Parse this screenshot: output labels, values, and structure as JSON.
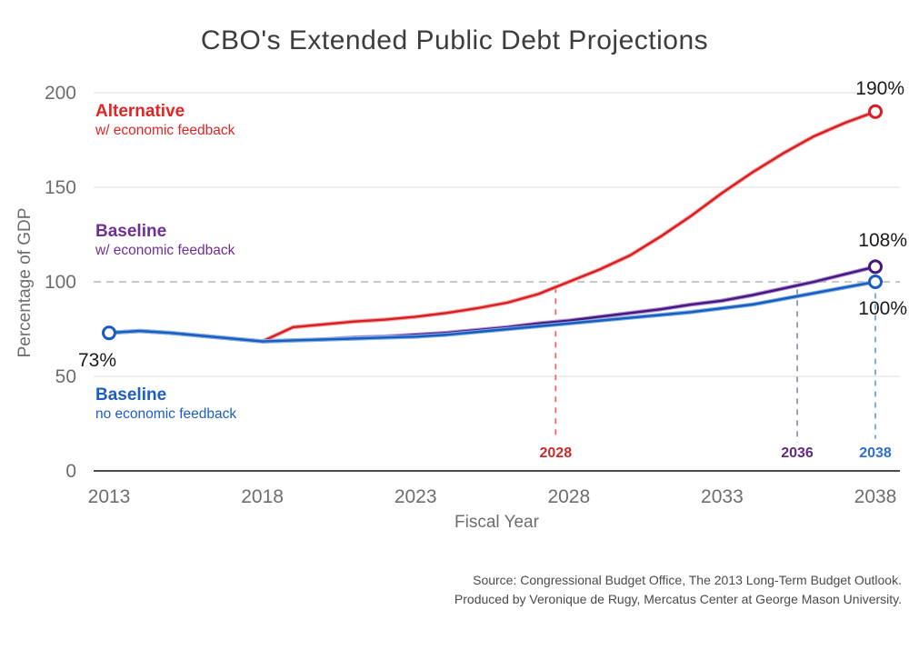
{
  "title": "CBO's Extended Public Debt Projections",
  "axes": {
    "y_label": "Percentage of GDP",
    "x_label": "Fiscal Year"
  },
  "legend": [
    {
      "name": "Alternative",
      "sub": "w/ economic feedback",
      "color": "#e02525"
    },
    {
      "name": "Baseline",
      "sub": "w/ economic feedback",
      "color": "#6f3095"
    },
    {
      "name": "Baseline",
      "sub": "no economic feedback",
      "color": "#1d5fc0"
    }
  ],
  "annotations": {
    "start_value": "73%",
    "alternative_end": "190%",
    "baseline_feedback_end": "108%",
    "baseline_end": "100%"
  },
  "source_line1": "Source: Congressional Budget Office, The 2013 Long-Term Budget Outlook.",
  "source_line2": "Produced by Veronique de Rugy, Mercatus Center at George Mason University.",
  "chart_data": {
    "type": "line",
    "title": "CBO's Extended Public Debt Projections",
    "xlabel": "Fiscal Year",
    "ylabel": "Percentage of GDP",
    "xlim": [
      2013,
      2038
    ],
    "ylim": [
      0,
      200
    ],
    "xticks": [
      2013,
      2018,
      2023,
      2028,
      2033,
      2038
    ],
    "yticks": [
      0,
      50,
      100,
      150,
      200
    ],
    "grid_solid_values": [
      50,
      150,
      200
    ],
    "grid_dashed_value": 100,
    "legend_position": "inside-left",
    "x": [
      2013,
      2014,
      2015,
      2016,
      2017,
      2018,
      2019,
      2020,
      2021,
      2022,
      2023,
      2024,
      2025,
      2026,
      2027,
      2028,
      2029,
      2030,
      2031,
      2032,
      2033,
      2034,
      2035,
      2036,
      2037,
      2038
    ],
    "series": [
      {
        "name": "Alternative w/ economic feedback",
        "color": "#d81e20",
        "halo": "#f2a6a6",
        "values": [
          73,
          74,
          73,
          71.5,
          70,
          68.5,
          76,
          77.5,
          79,
          80,
          81.5,
          83.5,
          86,
          89,
          93.5,
          100,
          106.5,
          114,
          124,
          135,
          147,
          158,
          168,
          177,
          184,
          190
        ]
      },
      {
        "name": "Baseline w/ economic feedback",
        "color": "#45187e",
        "halo": "#b18fd6",
        "values": [
          73,
          74,
          73,
          71.5,
          70,
          68.5,
          69,
          69.5,
          70.5,
          71,
          72,
          73,
          74.5,
          76,
          78,
          79.5,
          81.5,
          83.5,
          85.5,
          88,
          90,
          93,
          96.5,
          100,
          104,
          108
        ]
      },
      {
        "name": "Baseline no economic feedback",
        "color": "#1a5cbe",
        "halo": "#7fb2e5",
        "values": [
          73,
          74,
          73,
          71.5,
          70,
          68.5,
          69,
          69.5,
          70,
          70.5,
          71,
          72,
          73.5,
          75,
          76.5,
          78,
          79.5,
          81,
          82.5,
          84,
          86,
          88,
          91,
          94,
          97,
          100
        ]
      }
    ],
    "markers": [
      {
        "year": 2013,
        "value": 73,
        "color": "#1a5cbe"
      },
      {
        "year": 2038,
        "value": 190,
        "color": "#d81e20"
      },
      {
        "year": 2038,
        "value": 108,
        "color": "#45187e"
      },
      {
        "year": 2038,
        "value": 100,
        "color": "#1a5cbe"
      }
    ],
    "guides": [
      {
        "label": "2028",
        "x_year": 2027.57,
        "v_top": 97,
        "v_bottom": 18,
        "line_color": "#e96a6a",
        "label_color": "#cc2a2e"
      },
      {
        "label": "2036",
        "x_year": 2035.45,
        "v_top": 96,
        "v_bottom": 15,
        "line_color": "#9494b0",
        "label_color": "#5f2d84"
      },
      {
        "label": "2038",
        "x_year": 2038.0,
        "v_top": 94,
        "v_bottom": 17,
        "line_color": "#6fa8dc",
        "label_color": "#2e6fd0"
      }
    ]
  }
}
